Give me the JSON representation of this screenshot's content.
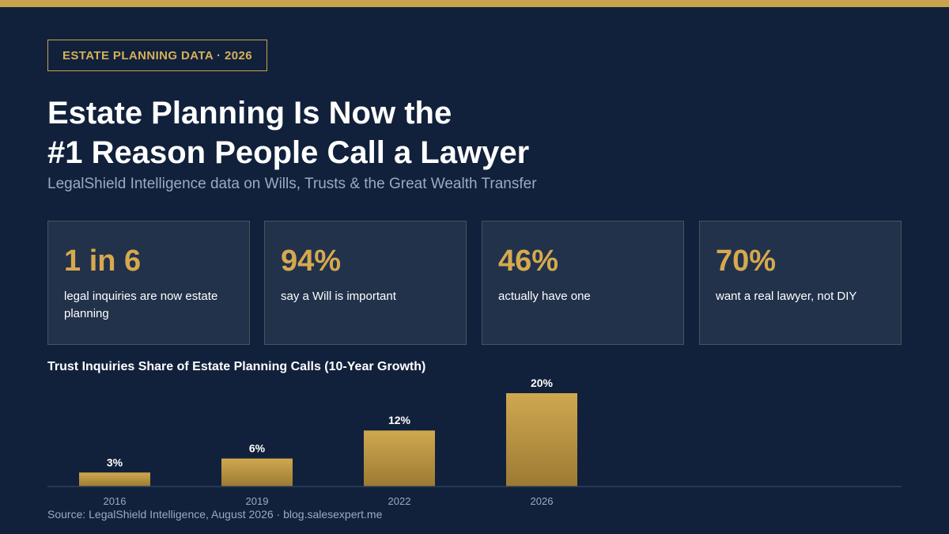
{
  "tag": "ESTATE PLANNING DATA · 2026",
  "headline": {
    "line1": "Estate Planning Is Now the",
    "line2": "#1 Reason People Call a Lawyer"
  },
  "subtitle": "LegalShield Intelligence data on Wills, Trusts & the Great Wealth Transfer",
  "stats": [
    {
      "value": "1 in 6",
      "label": "legal inquiries are now estate planning"
    },
    {
      "value": "94%",
      "label": "say a Will is important"
    },
    {
      "value": "46%",
      "label": "actually have one"
    },
    {
      "value": "70%",
      "label": "want a real lawyer, not DIY"
    }
  ],
  "chart_data": {
    "type": "bar",
    "title": "Trust Inquiries Share of Estate Planning Calls (10-Year Growth)",
    "categories": [
      "2016",
      "2019",
      "2022",
      "2026"
    ],
    "values": [
      3,
      6,
      12,
      20
    ],
    "value_labels": [
      "3%",
      "6%",
      "12%",
      "20%"
    ],
    "unit": "%",
    "ylim": [
      0,
      20
    ],
    "grid": false,
    "legend": "none",
    "xlabel": "",
    "ylabel": ""
  },
  "source": "Source: LegalShield Intelligence, August 2026  ·  blog.salesexpert.me",
  "colors": {
    "background": "#11213b",
    "accent_gold": "#c9a44e",
    "card_background": "#22324b",
    "text_white": "#ffffff",
    "text_muted": "#9aaac2"
  }
}
